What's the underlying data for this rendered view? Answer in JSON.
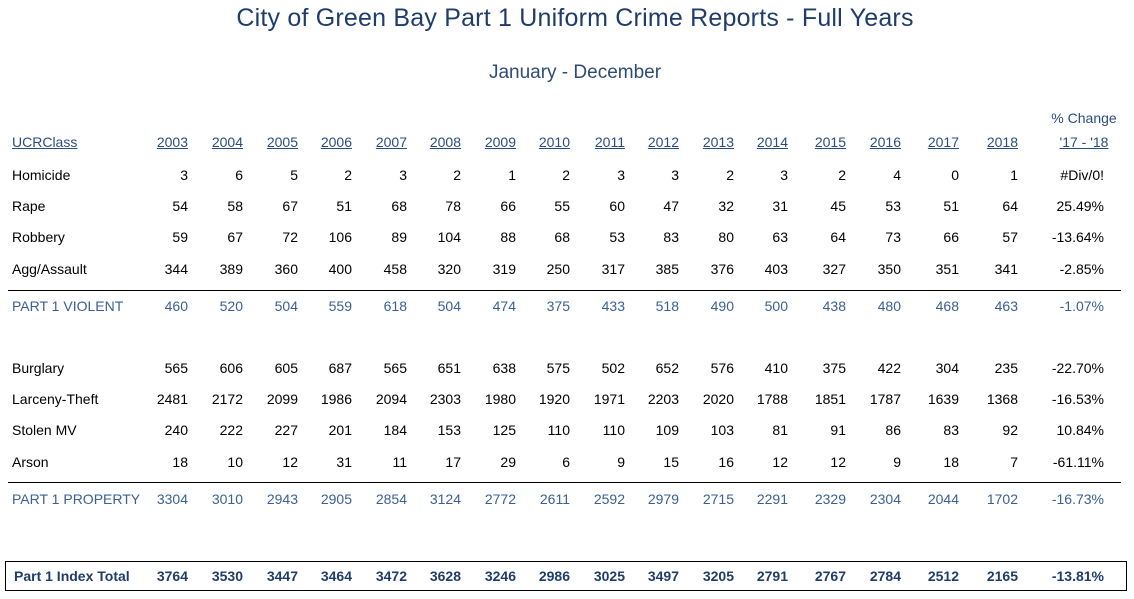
{
  "report": {
    "title": "City of Green Bay Part 1 Uniform Crime Reports - Full Years",
    "subtitle": "January - December"
  },
  "header": {
    "class_label": "UCRClass",
    "years": [
      "2003",
      "2004",
      "2005",
      "2006",
      "2007",
      "2008",
      "2009",
      "2010",
      "2011",
      "2012",
      "2013",
      "2014",
      "2015",
      "2016",
      "2017",
      "2018"
    ],
    "pct_label_top": "% Change",
    "pct_label_bottom": "'17 - '18"
  },
  "violent": {
    "rows": [
      {
        "label": "Homicide",
        "values": [
          "3",
          "6",
          "5",
          "2",
          "3",
          "2",
          "1",
          "2",
          "3",
          "3",
          "2",
          "3",
          "2",
          "4",
          "0",
          "1"
        ],
        "pct": "#Div/0!"
      },
      {
        "label": "Rape",
        "values": [
          "54",
          "58",
          "67",
          "51",
          "68",
          "78",
          "66",
          "55",
          "60",
          "47",
          "32",
          "31",
          "45",
          "53",
          "51",
          "64"
        ],
        "pct": "25.49%"
      },
      {
        "label": "Robbery",
        "values": [
          "59",
          "67",
          "72",
          "106",
          "89",
          "104",
          "88",
          "68",
          "53",
          "83",
          "80",
          "63",
          "64",
          "73",
          "66",
          "57"
        ],
        "pct": "-13.64%"
      },
      {
        "label": "Agg/Assault",
        "values": [
          "344",
          "389",
          "360",
          "400",
          "458",
          "320",
          "319",
          "250",
          "317",
          "385",
          "376",
          "403",
          "327",
          "350",
          "351",
          "341"
        ],
        "pct": "-2.85%"
      }
    ],
    "subtotal": {
      "label": "PART 1 VIOLENT",
      "values": [
        "460",
        "520",
        "504",
        "559",
        "618",
        "504",
        "474",
        "375",
        "433",
        "518",
        "490",
        "500",
        "438",
        "480",
        "468",
        "463"
      ],
      "pct": "-1.07%"
    }
  },
  "property": {
    "rows": [
      {
        "label": "Burglary",
        "values": [
          "565",
          "606",
          "605",
          "687",
          "565",
          "651",
          "638",
          "575",
          "502",
          "652",
          "576",
          "410",
          "375",
          "422",
          "304",
          "235"
        ],
        "pct": "-22.70%"
      },
      {
        "label": "Larceny-Theft",
        "values": [
          "2481",
          "2172",
          "2099",
          "1986",
          "2094",
          "2303",
          "1980",
          "1920",
          "1971",
          "2203",
          "2020",
          "1788",
          "1851",
          "1787",
          "1639",
          "1368"
        ],
        "pct": "-16.53%"
      },
      {
        "label": "Stolen MV",
        "values": [
          "240",
          "222",
          "227",
          "201",
          "184",
          "153",
          "125",
          "110",
          "110",
          "109",
          "103",
          "81",
          "91",
          "86",
          "83",
          "92"
        ],
        "pct": "10.84%"
      },
      {
        "label": "Arson",
        "values": [
          "18",
          "10",
          "12",
          "31",
          "11",
          "17",
          "29",
          "6",
          "9",
          "15",
          "16",
          "12",
          "12",
          "9",
          "18",
          "7"
        ],
        "pct": "-61.11%"
      }
    ],
    "subtotal": {
      "label": "PART 1 PROPERTY",
      "values": [
        "3304",
        "3010",
        "2943",
        "2905",
        "2854",
        "3124",
        "2772",
        "2611",
        "2592",
        "2979",
        "2715",
        "2291",
        "2329",
        "2304",
        "2044",
        "1702"
      ],
      "pct": "-16.73%"
    }
  },
  "total": {
    "label": "Part 1 Index Total",
    "values": [
      "3764",
      "3530",
      "3447",
      "3464",
      "3472",
      "3628",
      "3246",
      "2986",
      "3025",
      "3497",
      "3205",
      "2791",
      "2767",
      "2784",
      "2512",
      "2165"
    ],
    "pct": "-13.81%"
  },
  "colors": {
    "title": "#1f3d6b",
    "header": "#2a4d80",
    "subtotal": "#3a5f94",
    "total": "#1f3d6b"
  }
}
